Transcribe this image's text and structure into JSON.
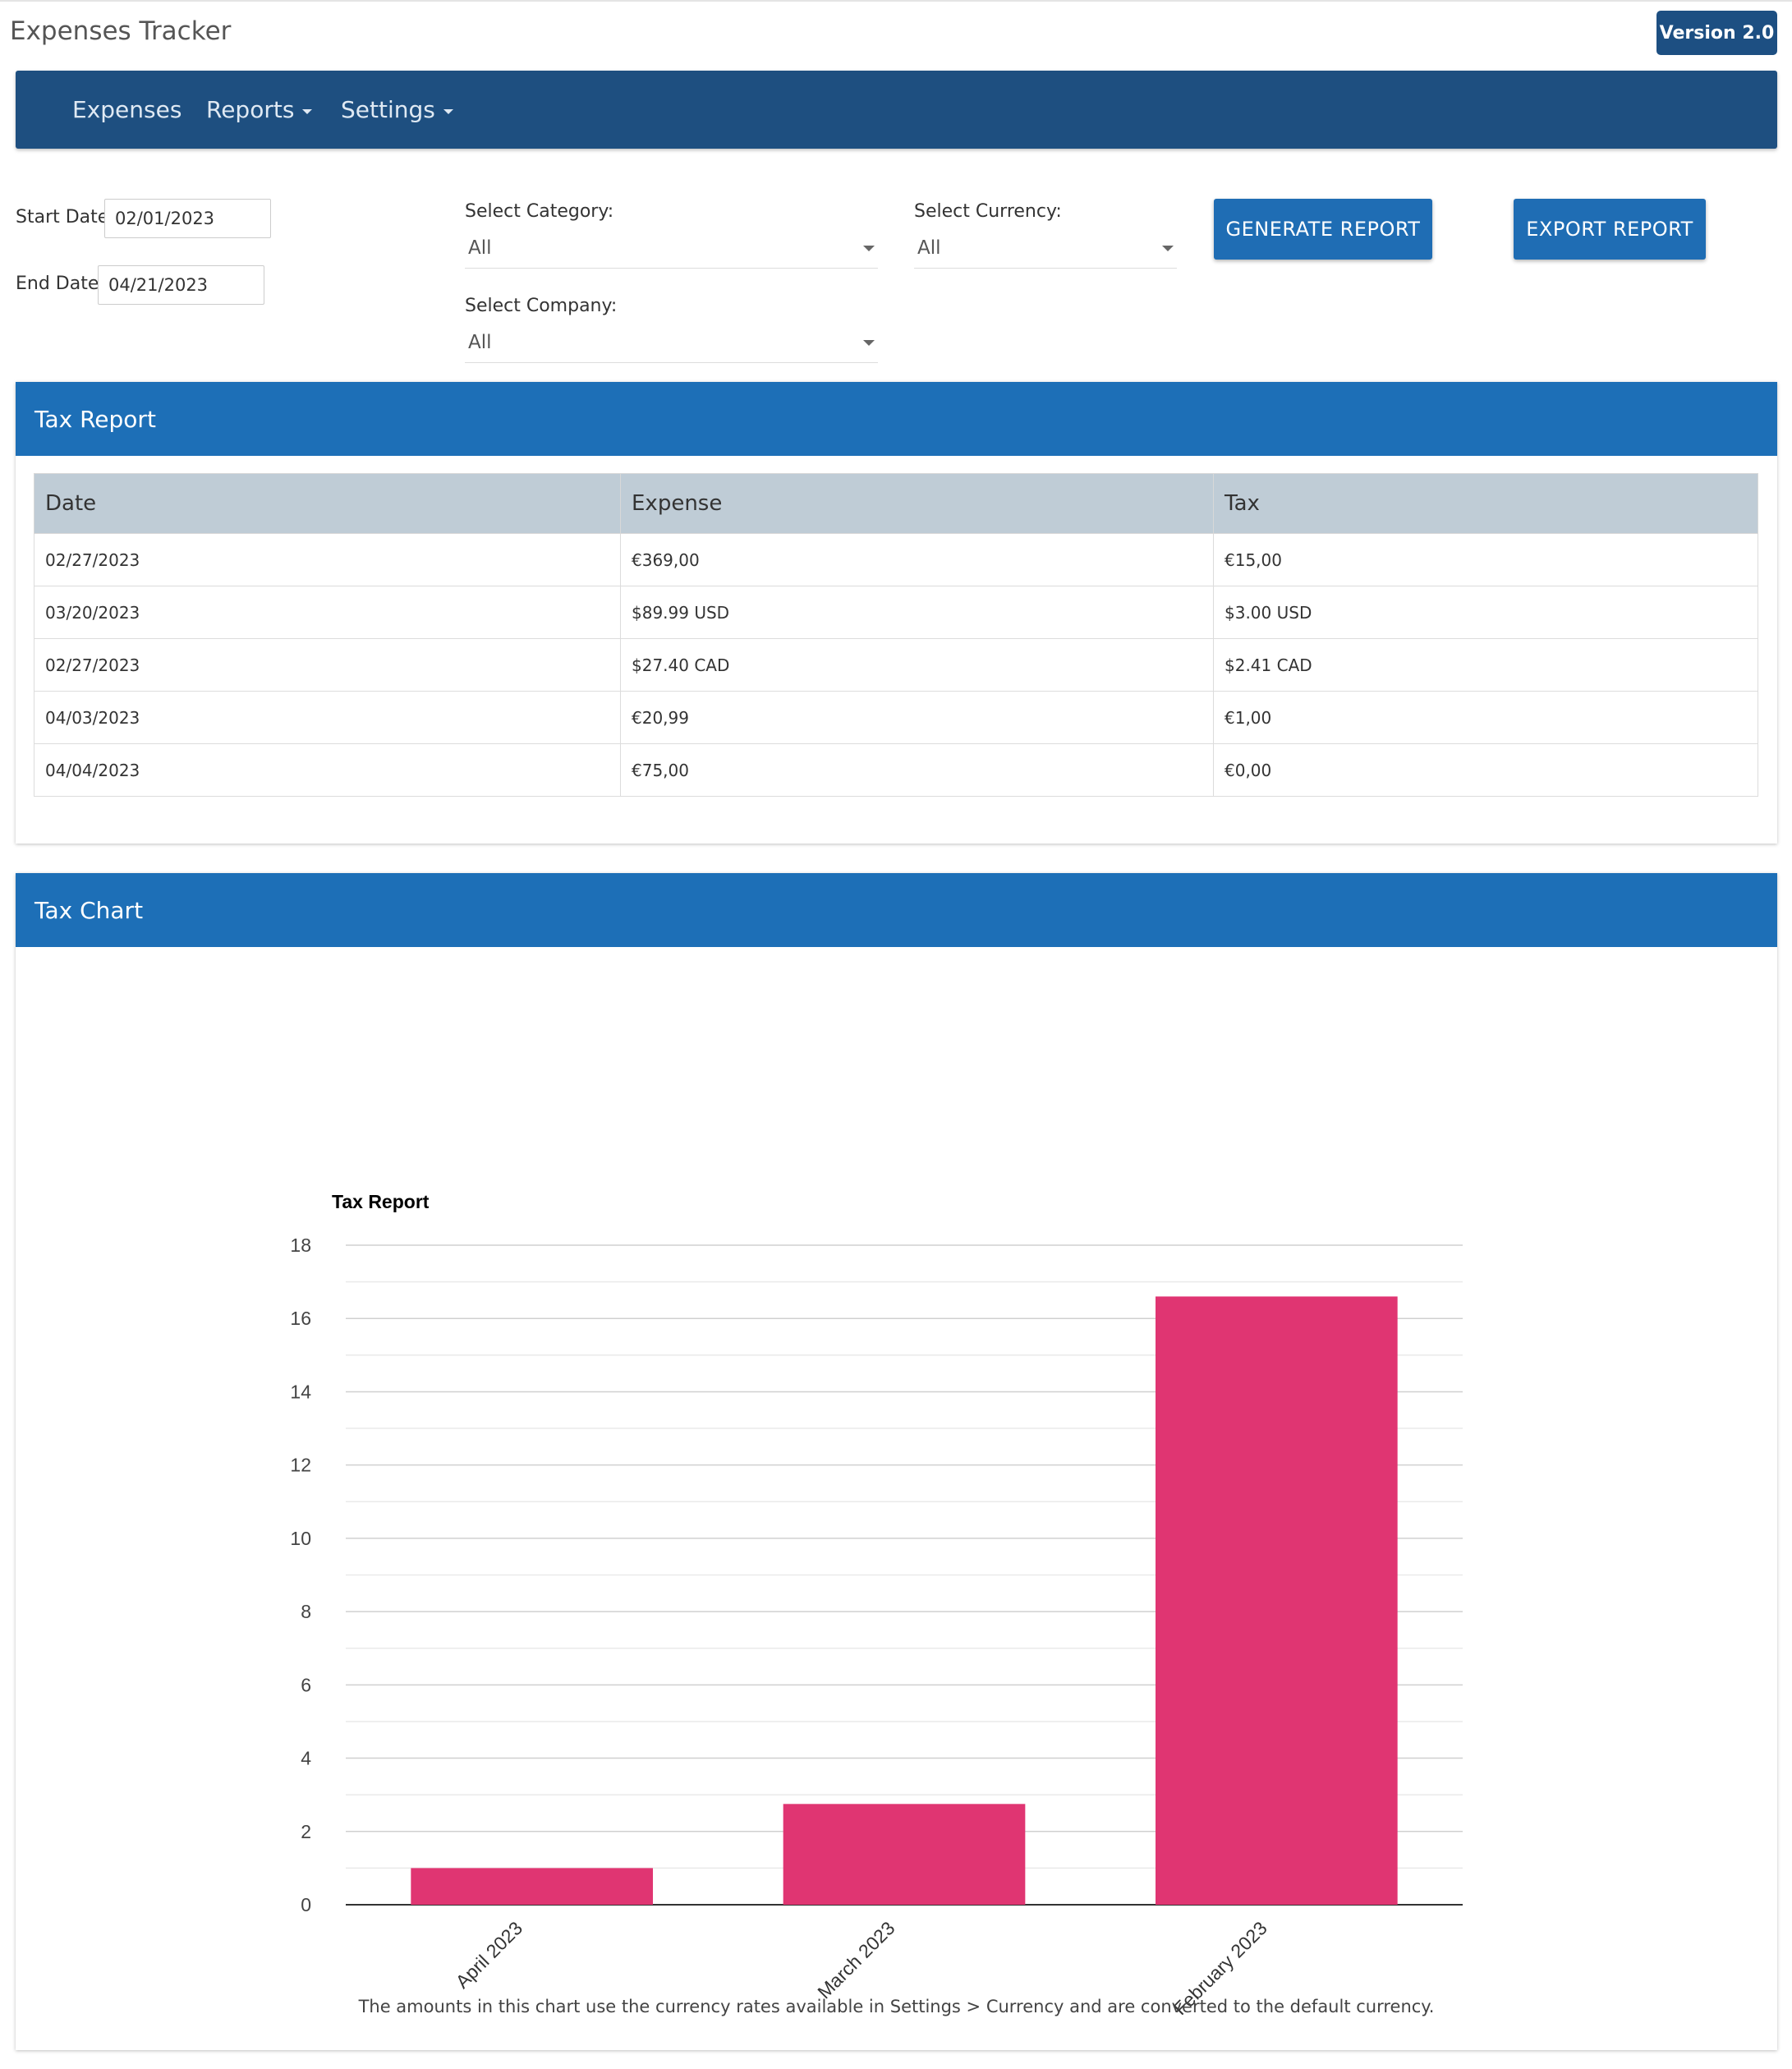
{
  "app": {
    "title": "Expenses Tracker",
    "version": "Version 2.0"
  },
  "nav": {
    "items": [
      {
        "label": "Expenses",
        "has_dropdown": false
      },
      {
        "label": "Reports",
        "has_dropdown": true
      },
      {
        "label": "Settings",
        "has_dropdown": true
      }
    ]
  },
  "filters": {
    "start_date_label": "Start Date:",
    "start_date_value": "02/01/2023",
    "end_date_label": "End Date:",
    "end_date_value": "04/21/2023",
    "category_label": "Select Category:",
    "category_value": "All",
    "company_label": "Select Company:",
    "company_value": "All",
    "currency_label": "Select Currency:",
    "currency_value": "All"
  },
  "buttons": {
    "generate": "GENERATE REPORT",
    "export": "EXPORT REPORT"
  },
  "tax_report": {
    "title": "Tax Report",
    "columns": [
      "Date",
      "Expense",
      "Tax"
    ],
    "rows": [
      [
        "02/27/2023",
        "€369,00",
        "€15,00"
      ],
      [
        "03/20/2023",
        "$89.99 USD",
        "$3.00 USD"
      ],
      [
        "02/27/2023",
        "$27.40 CAD",
        "$2.41 CAD"
      ],
      [
        "04/03/2023",
        "€20,99",
        "€1,00"
      ],
      [
        "04/04/2023",
        "€75,00",
        "€0,00"
      ]
    ]
  },
  "tax_chart": {
    "panel_title": "Tax Chart",
    "note": "The amounts in this chart use the currency rates available in Settings > Currency and are converted to the default currency."
  },
  "chart_data": {
    "type": "bar",
    "title": "Tax Report",
    "categories": [
      "April 2023",
      "March 2023",
      "February 2023"
    ],
    "values": [
      1.0,
      2.75,
      16.6
    ],
    "ylim": [
      0,
      18
    ],
    "yticks": [
      0,
      2,
      4,
      6,
      8,
      10,
      12,
      14,
      16,
      18
    ],
    "bar_color": "#e03572",
    "grid": true,
    "xlabel": "",
    "ylabel": ""
  }
}
